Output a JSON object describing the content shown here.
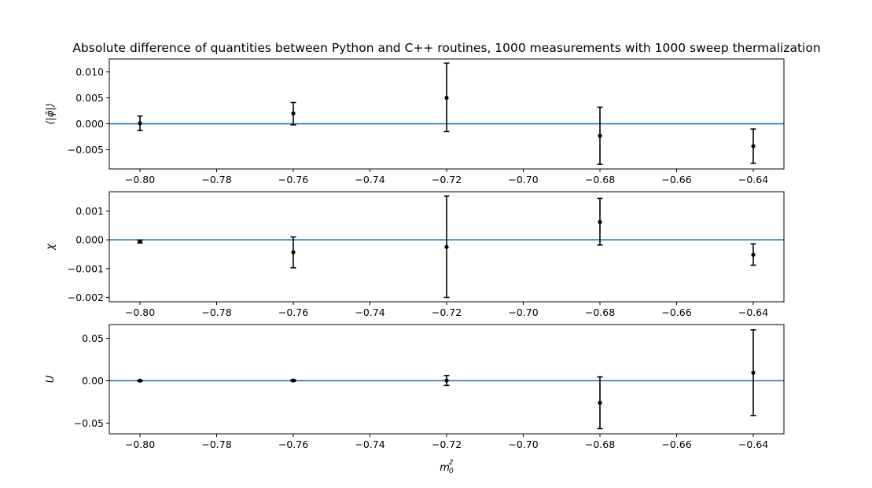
{
  "figure": {
    "title": "Absolute difference of quantities between Python and C++ routines, 1000 measurements with 1000 sweep thermalization",
    "xlabel_base": "m",
    "xlabel_sup": "2",
    "xlabel_sub": "0",
    "colors": {
      "reference_line": "#1f77b4",
      "points": "#000000",
      "axes": "#000000"
    }
  },
  "chart_data": [
    {
      "type": "scatter",
      "ylabel": "⟨|φ̄|⟩",
      "x": [
        -0.8,
        -0.76,
        -0.72,
        -0.68,
        -0.64
      ],
      "y": [
        0.0001,
        0.002,
        0.005,
        -0.0023,
        -0.0043
      ],
      "yerr_low": [
        0.0014,
        0.0022,
        0.0065,
        0.0055,
        0.0033
      ],
      "yerr_high": [
        0.0014,
        0.0021,
        0.0067,
        0.0055,
        0.0033
      ],
      "reference_line_y": 0,
      "xlim": [
        -0.808,
        -0.632
      ],
      "ylim": [
        -0.0087,
        0.0125
      ],
      "xticks": [
        -0.8,
        -0.78,
        -0.76,
        -0.74,
        -0.72,
        -0.7,
        -0.68,
        -0.66,
        -0.64
      ],
      "xtick_labels": [
        "−0.80",
        "−0.78",
        "−0.76",
        "−0.74",
        "−0.72",
        "−0.70",
        "−0.68",
        "−0.66",
        "−0.64"
      ],
      "yticks": [
        -0.005,
        0.0,
        0.005,
        0.01
      ],
      "ytick_labels": [
        "−0.005",
        "0.000",
        "0.005",
        "0.010"
      ]
    },
    {
      "type": "scatter",
      "ylabel": "χ",
      "x": [
        -0.8,
        -0.76,
        -0.72,
        -0.68,
        -0.64
      ],
      "y": [
        -6e-05,
        -0.00043,
        -0.00025,
        0.00062,
        -0.00052
      ],
      "yerr_low": [
        5e-05,
        0.00054,
        0.00175,
        0.0008,
        0.00036
      ],
      "yerr_high": [
        5e-05,
        0.00053,
        0.00177,
        0.00082,
        0.00038
      ],
      "reference_line_y": 0,
      "xlim": [
        -0.808,
        -0.632
      ],
      "ylim": [
        -0.00215,
        0.00167
      ],
      "xticks": [
        -0.8,
        -0.78,
        -0.76,
        -0.74,
        -0.72,
        -0.7,
        -0.68,
        -0.66,
        -0.64
      ],
      "xtick_labels": [
        "−0.80",
        "−0.78",
        "−0.76",
        "−0.74",
        "−0.72",
        "−0.70",
        "−0.68",
        "−0.66",
        "−0.64"
      ],
      "yticks": [
        -0.002,
        -0.001,
        0.0,
        0.001
      ],
      "ytick_labels": [
        "−0.002",
        "−0.001",
        "0.000",
        "0.001"
      ]
    },
    {
      "type": "scatter",
      "ylabel": "U",
      "x": [
        -0.8,
        -0.76,
        -0.72,
        -0.68,
        -0.64
      ],
      "y": [
        0.0,
        0.0003,
        0.0003,
        -0.026,
        0.0095
      ],
      "yerr_low": [
        0.0004,
        0.0008,
        0.0058,
        0.0305,
        0.0505
      ],
      "yerr_high": [
        0.0004,
        0.0008,
        0.0058,
        0.0305,
        0.0505
      ],
      "reference_line_y": 0,
      "xlim": [
        -0.808,
        -0.632
      ],
      "ylim": [
        -0.0626,
        0.0663
      ],
      "xticks": [
        -0.8,
        -0.78,
        -0.76,
        -0.74,
        -0.72,
        -0.7,
        -0.68,
        -0.66,
        -0.64
      ],
      "xtick_labels": [
        "−0.80",
        "−0.78",
        "−0.76",
        "−0.74",
        "−0.72",
        "−0.70",
        "−0.68",
        "−0.66",
        "−0.64"
      ],
      "yticks": [
        -0.05,
        0.0,
        0.05
      ],
      "ytick_labels": [
        "−0.05",
        "0.00",
        "0.05"
      ]
    }
  ]
}
